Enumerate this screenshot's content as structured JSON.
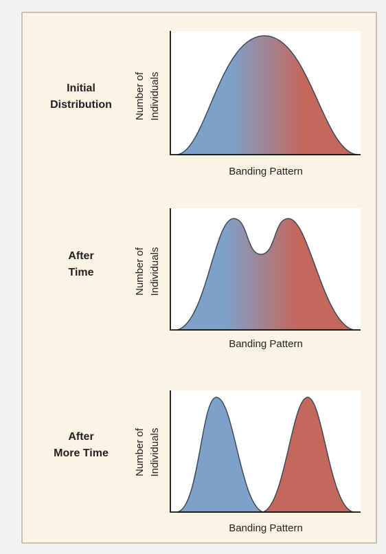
{
  "panels": [
    {
      "label": [
        "Initial",
        "Distribution"
      ],
      "y_axis_label": [
        "Number of",
        "Individuals"
      ],
      "x_axis_label": "Banding Pattern"
    },
    {
      "label": [
        "After",
        "Time"
      ],
      "y_axis_label": [
        "Number of",
        "Individuals"
      ],
      "x_axis_label": "Banding Pattern"
    },
    {
      "label": [
        "After",
        "More Time"
      ],
      "y_axis_label": [
        "Number of",
        "Individuals"
      ],
      "x_axis_label": "Banding Pattern"
    }
  ]
}
